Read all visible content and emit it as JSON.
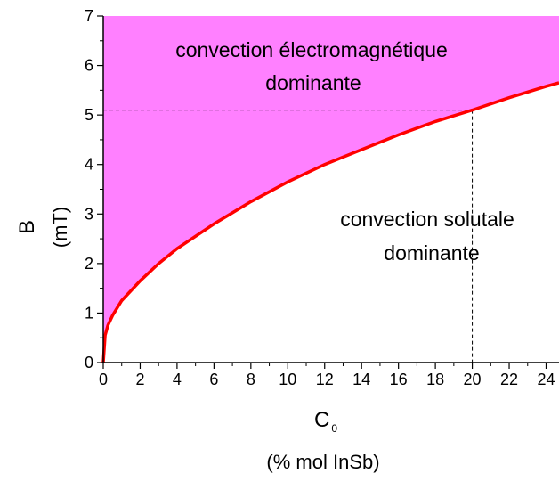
{
  "chart_data": {
    "type": "area",
    "xlabel_main": "C",
    "xlabel_sub": "0",
    "xlabel_unit": "(% mol InSb)",
    "ylabel_main": "B",
    "ylabel_unit": "(mT)",
    "xlim": [
      0,
      24.7
    ],
    "ylim": [
      0,
      7
    ],
    "x_ticks": [
      0,
      2,
      4,
      6,
      8,
      10,
      12,
      14,
      16,
      18,
      20,
      22,
      24
    ],
    "y_ticks": [
      0,
      1,
      2,
      3,
      4,
      5,
      6,
      7
    ],
    "series": [
      {
        "x": [
          0,
          0.1,
          0.25,
          0.5,
          1,
          2,
          3,
          4,
          6,
          8,
          10,
          12,
          14,
          16,
          18,
          20,
          22,
          24,
          24.7
        ],
        "y": [
          0,
          0.55,
          0.75,
          0.95,
          1.25,
          1.65,
          2.0,
          2.3,
          2.8,
          3.25,
          3.65,
          4.0,
          4.3,
          4.6,
          4.87,
          5.1,
          5.35,
          5.58,
          5.65
        ]
      }
    ],
    "upper_region": {
      "line1": "convection électromagnétique",
      "line2": "dominante"
    },
    "lower_region": {
      "line1": "convection solutale",
      "line2": "dominante"
    },
    "reference": {
      "x": 20,
      "y": 5.1
    },
    "colors": {
      "fill": "#ff80ff",
      "curve": "#ff0000",
      "axis": "#000000",
      "guide": "#000000"
    }
  }
}
